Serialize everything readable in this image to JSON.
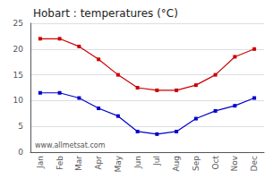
{
  "chart_data": {
    "type": "line",
    "title": "Hobart : temperatures (°C)",
    "categories": [
      "Jan",
      "Feb",
      "Mar",
      "Apr",
      "May",
      "Jun",
      "Jul",
      "Aug",
      "Sep",
      "Oct",
      "Nov",
      "Dec"
    ],
    "series": [
      {
        "color": "#cc0000",
        "marker": "square",
        "values": [
          22,
          22,
          20.5,
          18,
          15,
          12.5,
          12,
          12,
          13,
          15,
          18.5,
          20
        ]
      },
      {
        "color": "#0000cc",
        "marker": "square",
        "values": [
          11.5,
          11.5,
          10.5,
          8.5,
          7,
          4,
          3.5,
          4,
          6.5,
          8,
          9,
          10.5
        ]
      }
    ],
    "ylim": [
      0,
      25
    ],
    "yticks": [
      0,
      5,
      10,
      15,
      20,
      25
    ],
    "grid": true,
    "annotations": [
      "www.allmetsat.com"
    ]
  }
}
